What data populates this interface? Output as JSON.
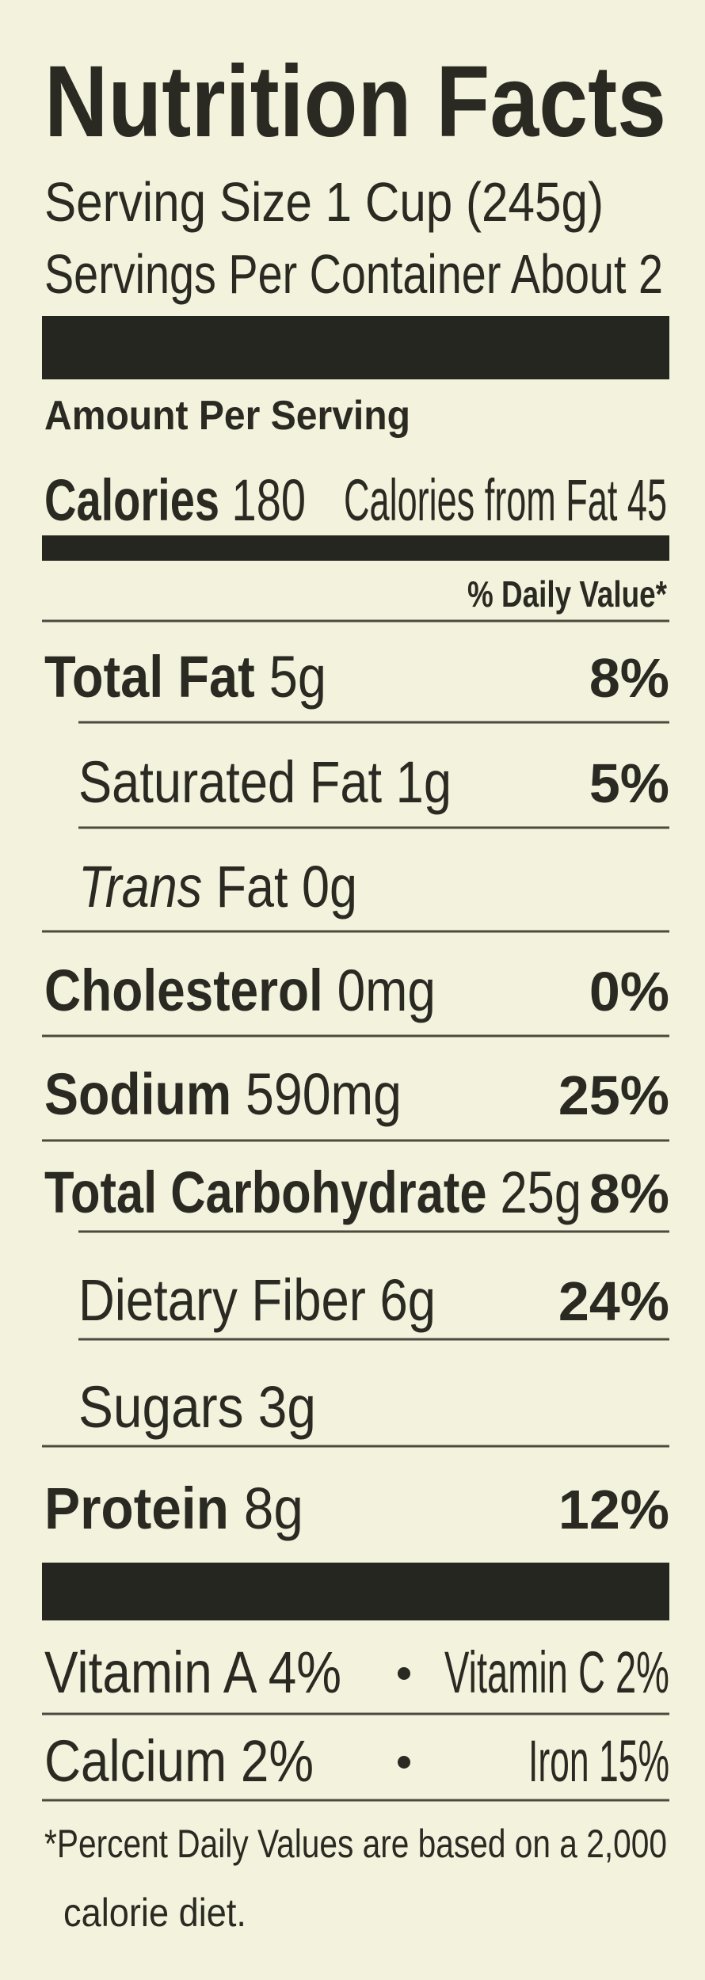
{
  "header": {
    "title": "Nutrition Facts",
    "serving_size": "Serving Size 1 Cup (245g)",
    "servings_per_container": "Servings Per Container About 2"
  },
  "amount_per_serving": "Amount Per Serving",
  "calories": {
    "label": "Calories",
    "value": "180",
    "from_fat": "Calories from Fat 45"
  },
  "daily_value_header": "% Daily Value*",
  "nutrients": [
    {
      "name": "Total Fat",
      "amount": "5g",
      "dv": "8%"
    },
    {
      "name": "Saturated Fat",
      "amount": "1g",
      "dv": "5%"
    },
    {
      "name_italic": "Trans",
      "name": "Fat",
      "amount": "0g"
    },
    {
      "name": "Cholesterol",
      "amount": "0mg",
      "dv": "0%"
    },
    {
      "name": "Sodium",
      "amount": "590mg",
      "dv": "25%"
    },
    {
      "name": "Total Carbohydrate",
      "amount": "25g",
      "dv": "8%"
    },
    {
      "name": "Dietary Fiber",
      "amount": "6g",
      "dv": "24%"
    },
    {
      "name": "Sugars",
      "amount": "3g"
    },
    {
      "name": "Protein",
      "amount": "8g",
      "dv": "12%"
    }
  ],
  "vitamins": [
    [
      "Vitamin A 4%",
      "Vitamin C 2%"
    ],
    [
      "Calcium 2%",
      "Iron 15%"
    ]
  ],
  "footnote": [
    "*Percent Daily Values are based on a 2,000",
    "calorie diet."
  ]
}
